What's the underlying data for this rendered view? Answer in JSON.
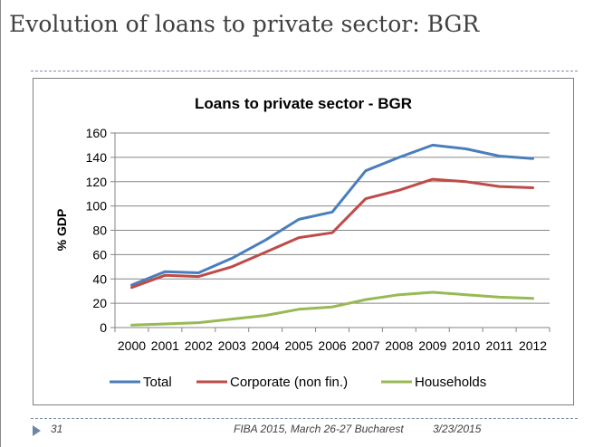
{
  "slide": {
    "title": "Evolution of loans to private sector: BGR",
    "number": "31",
    "footer_text": "FIBA 2015,  March 26-27 Bucharest",
    "date": "3/23/2015"
  },
  "chart_data": {
    "type": "line",
    "title": "Loans to private sector - BGR",
    "xlabel": "",
    "ylabel": "% GDP",
    "categories": [
      "2000",
      "2001",
      "2002",
      "2003",
      "2004",
      "2005",
      "2006",
      "2007",
      "2008",
      "2009",
      "2010",
      "2011",
      "2012"
    ],
    "ylim": [
      0,
      160
    ],
    "yticks": [
      0,
      20,
      40,
      60,
      80,
      100,
      120,
      140,
      160
    ],
    "grid": true,
    "legend_position": "bottom",
    "series": [
      {
        "name": "Total",
        "color": "#4a7ebb",
        "values": [
          35,
          46,
          45,
          57,
          72,
          89,
          95,
          129,
          140,
          150,
          147,
          141,
          139
        ]
      },
      {
        "name": "Corporate (non fin.)",
        "color": "#be4b48",
        "values": [
          33,
          43,
          42,
          50,
          62,
          74,
          78,
          106,
          113,
          122,
          120,
          116,
          115
        ]
      },
      {
        "name": "Households",
        "color": "#98b954",
        "values": [
          2,
          3,
          4,
          7,
          10,
          15,
          17,
          23,
          27,
          29,
          27,
          25,
          24
        ]
      }
    ]
  }
}
